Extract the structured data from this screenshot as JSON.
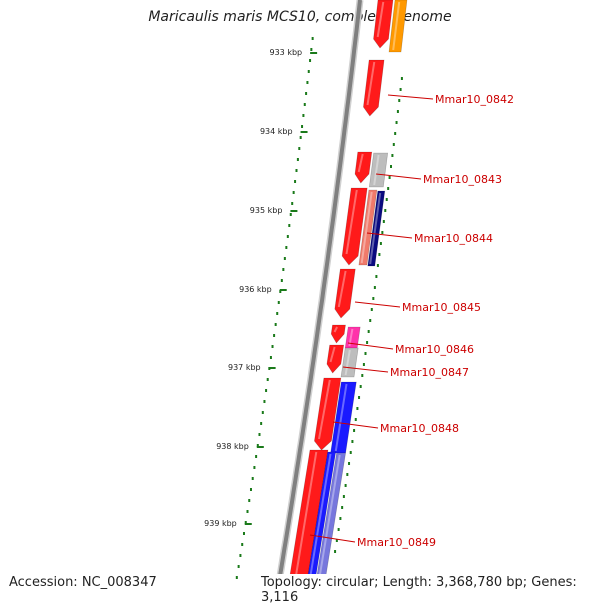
{
  "title": "Maricaulis maris MCS10, complete genome",
  "accession": "Accession: NC_008347",
  "topology": "Topology: circular; Length: 3,368,780 bp; Genes: 3,116",
  "colors": {
    "backbone": "#808080",
    "tick": "#1a7a1a",
    "red": "#ff1a1a",
    "orange": "#ff9900",
    "grey": "#bdbdbd",
    "navy": "#0a0a80",
    "salmon": "#f07a6a",
    "magenta": "#ff33aa",
    "blue": "#1a1aff",
    "lavender": "#7777dd",
    "label": "#cc0000"
  },
  "scale_labels": [
    "933 kbp",
    "934 kbp",
    "935 kbp",
    "936 kbp",
    "937 kbp",
    "938 kbp",
    "939 kbp"
  ],
  "gene_labels": [
    "Mmar10_0842",
    "Mmar10_0843",
    "Mmar10_0844",
    "Mmar10_0845",
    "Mmar10_0846",
    "Mmar10_0847",
    "Mmar10_0848",
    "Mmar10_0849"
  ]
}
